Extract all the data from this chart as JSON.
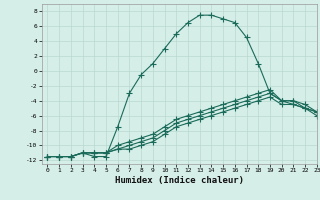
{
  "title": "",
  "xlabel": "Humidex (Indice chaleur)",
  "ylabel": "",
  "background_color": "#d6eee8",
  "grid_color": "#b8d8d0",
  "line_color": "#1a6b5a",
  "xlim": [
    -0.5,
    23
  ],
  "ylim": [
    -12.5,
    9
  ],
  "yticks": [
    -12,
    -10,
    -8,
    -6,
    -4,
    -2,
    0,
    2,
    4,
    6,
    8
  ],
  "xticks": [
    0,
    1,
    2,
    3,
    4,
    5,
    6,
    7,
    8,
    9,
    10,
    11,
    12,
    13,
    14,
    15,
    16,
    17,
    18,
    19,
    20,
    21,
    22,
    23
  ],
  "series": [
    {
      "x": [
        0,
        1,
        2,
        3,
        4,
        5,
        6,
        7,
        8,
        9,
        10,
        11,
        12,
        13,
        14,
        15,
        16,
        17,
        18,
        19,
        20,
        21,
        22,
        23
      ],
      "y": [
        -11.5,
        -11.5,
        -11.5,
        -11,
        -11.5,
        -11.5,
        -7.5,
        -3,
        -0.5,
        1,
        3,
        5,
        6.5,
        7.5,
        7.5,
        7,
        6.5,
        4.5,
        1,
        -3,
        -4,
        -4.5,
        -5,
        -5.5
      ]
    },
    {
      "x": [
        0,
        1,
        2,
        3,
        4,
        5,
        6,
        7,
        8,
        9,
        10,
        11,
        12,
        13,
        14,
        15,
        16,
        17,
        18,
        19,
        20,
        21,
        22,
        23
      ],
      "y": [
        -11.5,
        -11.5,
        -11.5,
        -11,
        -11,
        -11,
        -10.5,
        -10.5,
        -10,
        -9.5,
        -8.5,
        -7.5,
        -7,
        -6.5,
        -6,
        -5.5,
        -5,
        -4.5,
        -4,
        -3.5,
        -4.5,
        -4.5,
        -5,
        -5.5
      ]
    },
    {
      "x": [
        0,
        1,
        2,
        3,
        4,
        5,
        6,
        7,
        8,
        9,
        10,
        11,
        12,
        13,
        14,
        15,
        16,
        17,
        18,
        19,
        20,
        21,
        22,
        23
      ],
      "y": [
        -11.5,
        -11.5,
        -11.5,
        -11,
        -11,
        -11,
        -10.5,
        -10,
        -9.5,
        -9,
        -8,
        -7,
        -6.5,
        -6,
        -5.5,
        -5,
        -4.5,
        -4,
        -3.5,
        -3,
        -4,
        -4,
        -4.5,
        -5.5
      ]
    },
    {
      "x": [
        0,
        1,
        2,
        3,
        4,
        5,
        6,
        7,
        8,
        9,
        10,
        11,
        12,
        13,
        14,
        15,
        16,
        17,
        18,
        19,
        20,
        21,
        22,
        23
      ],
      "y": [
        -11.5,
        -11.5,
        -11.5,
        -11,
        -11,
        -11,
        -10,
        -9.5,
        -9,
        -8.5,
        -7.5,
        -6.5,
        -6,
        -5.5,
        -5,
        -4.5,
        -4,
        -3.5,
        -3,
        -2.5,
        -4,
        -4,
        -5,
        -6
      ]
    }
  ]
}
